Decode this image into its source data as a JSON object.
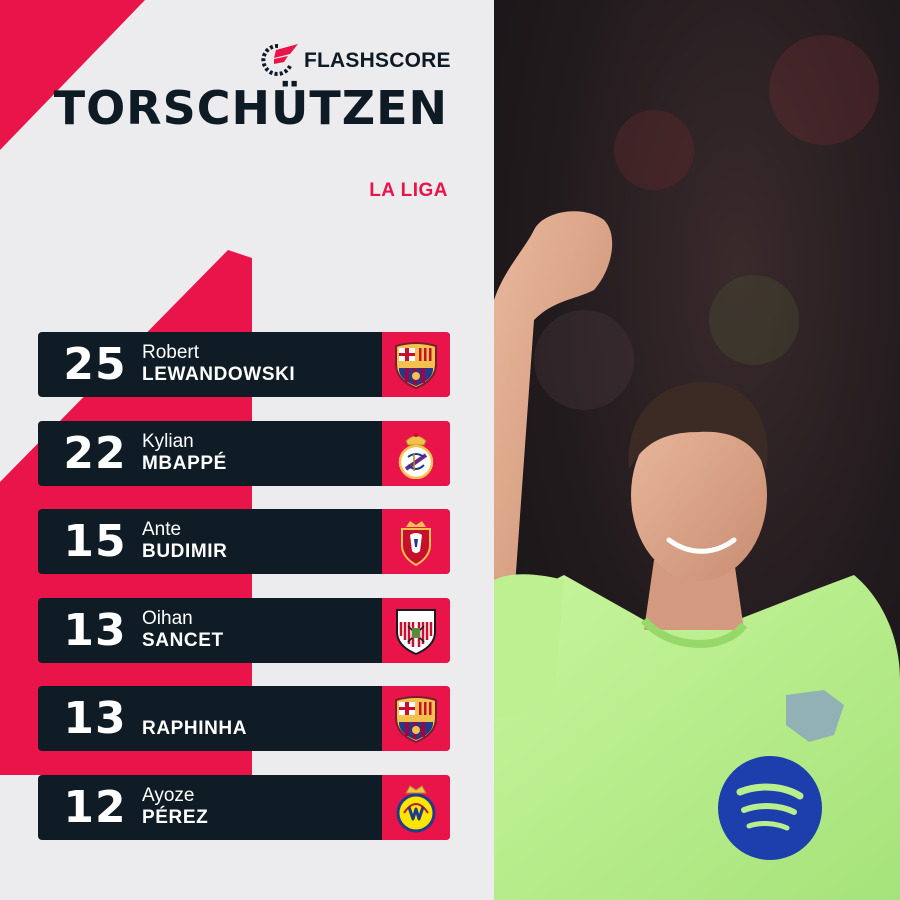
{
  "brand": {
    "name": "FLASHSCORE",
    "icon": "flashscore-logo-icon"
  },
  "title": "TORSCHÜTZEN",
  "league": "LA LIGA",
  "colors": {
    "accent": "#e8144a",
    "dark": "#0f1c26",
    "background": "#ecebee",
    "kit": "#b8ef8c"
  },
  "scorers": [
    {
      "goals": "25",
      "first_name": "Robert",
      "last_name": "LEWANDOWSKI",
      "club_icon": "fc-barcelona-crest-icon"
    },
    {
      "goals": "22",
      "first_name": "Kylian",
      "last_name": "MBAPPÉ",
      "club_icon": "real-madrid-crest-icon"
    },
    {
      "goals": "15",
      "first_name": "Ante",
      "last_name": "BUDIMIR",
      "club_icon": "osasuna-crest-icon"
    },
    {
      "goals": "13",
      "first_name": "Oihan",
      "last_name": "SANCET",
      "club_icon": "athletic-club-crest-icon"
    },
    {
      "goals": "13",
      "first_name": "",
      "last_name": "RAPHINHA",
      "club_icon": "fc-barcelona-crest-icon"
    },
    {
      "goals": "12",
      "first_name": "Ayoze",
      "last_name": "PÉREZ",
      "club_icon": "villarreal-crest-icon"
    }
  ]
}
